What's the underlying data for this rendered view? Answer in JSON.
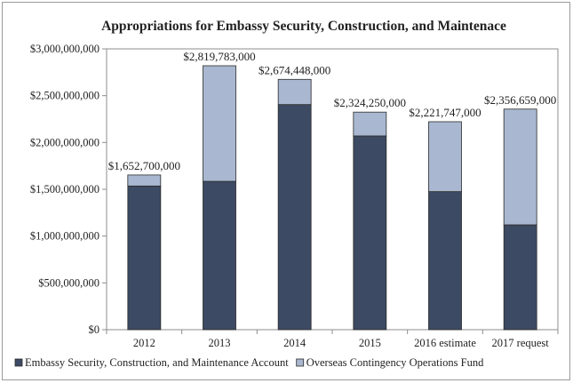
{
  "chart_data": {
    "type": "bar",
    "stacked": true,
    "title": "Appropriations for Embassy Security, Construction, and Maintenace",
    "categories": [
      "2012",
      "2013",
      "2014",
      "2015",
      "2016 estimate",
      "2017 request"
    ],
    "series": [
      {
        "name": "Embassy Security, Construction, and Maintenance Account",
        "color": "#3d4a63",
        "values": [
          1535000000,
          1585000000,
          2405000000,
          2070000000,
          1475000000,
          1120000000
        ]
      },
      {
        "name": "Overseas Contingency Operations Fund",
        "color": "#a9b8d0",
        "values": [
          117700000,
          1234783000,
          269448000,
          254250000,
          746747000,
          1236659000
        ]
      }
    ],
    "totals": [
      1652700000,
      2819783000,
      2674448000,
      2324250000,
      2221747000,
      2356659000
    ],
    "data_labels": [
      "$1,652,700,000",
      "$2,819,783,000",
      "$2,674,448,000",
      "$2,324,250,000",
      "$2,221,747,000",
      "$2,356,659,000"
    ],
    "y_ticks": [
      0,
      500000000,
      1000000000,
      1500000000,
      2000000000,
      2500000000,
      3000000000
    ],
    "y_tick_labels": [
      "$0",
      "$500,000,000",
      "$1,000,000,000",
      "$1,500,000,000",
      "$2,000,000,000",
      "$2,500,000,000",
      "$3,000,000,000"
    ],
    "ylim": [
      0,
      3000000000
    ],
    "grid": false,
    "legend_position": "bottom"
  }
}
